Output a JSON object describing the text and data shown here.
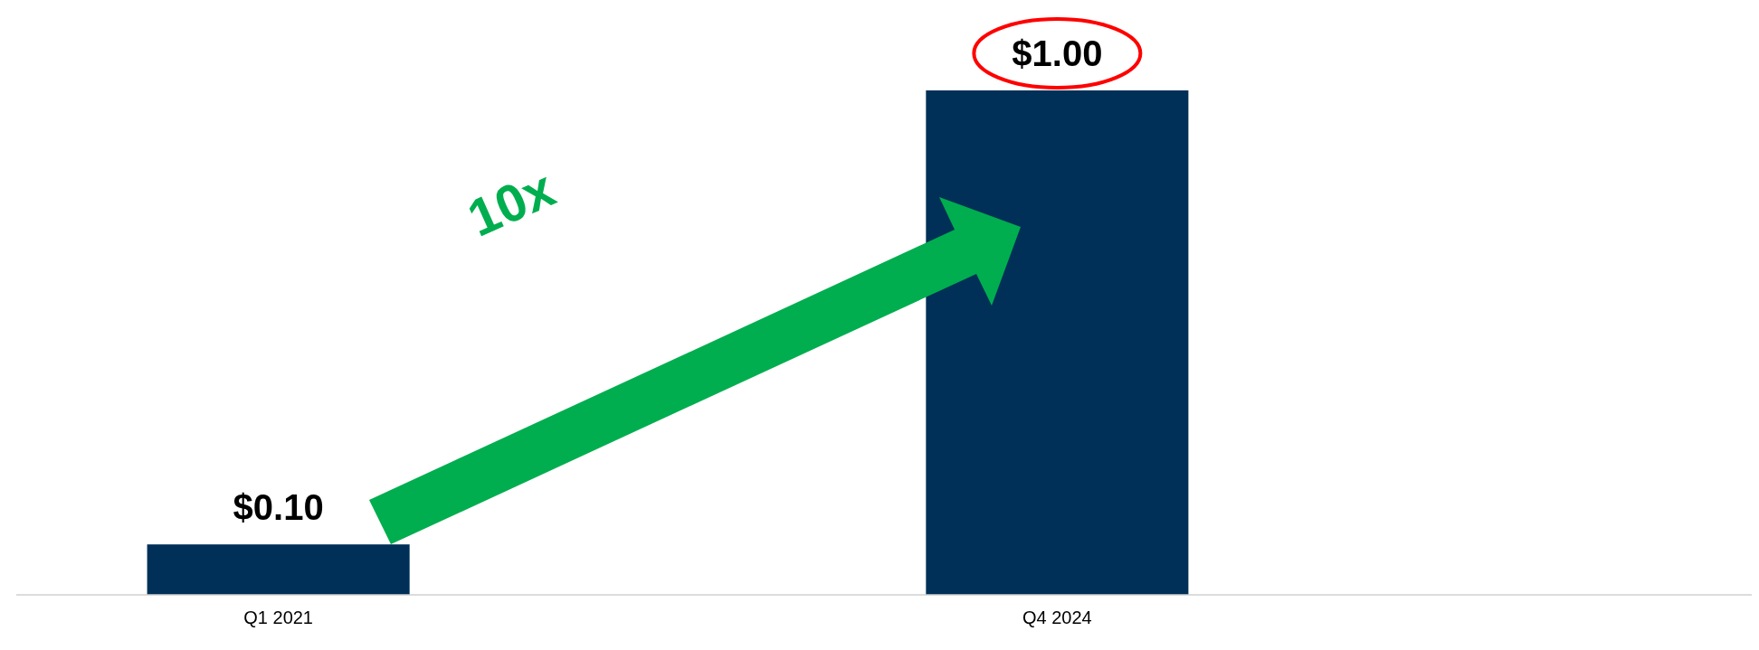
{
  "chart_data": {
    "type": "bar",
    "categories": [
      "Q1 2021",
      "Q4 2024"
    ],
    "values": [
      0.1,
      1.0
    ],
    "color": "#003057",
    "value_labels": [
      "$0.10",
      "$1.00"
    ],
    "annotations": [
      "10x"
    ],
    "tick_labels": "x"
  }
}
